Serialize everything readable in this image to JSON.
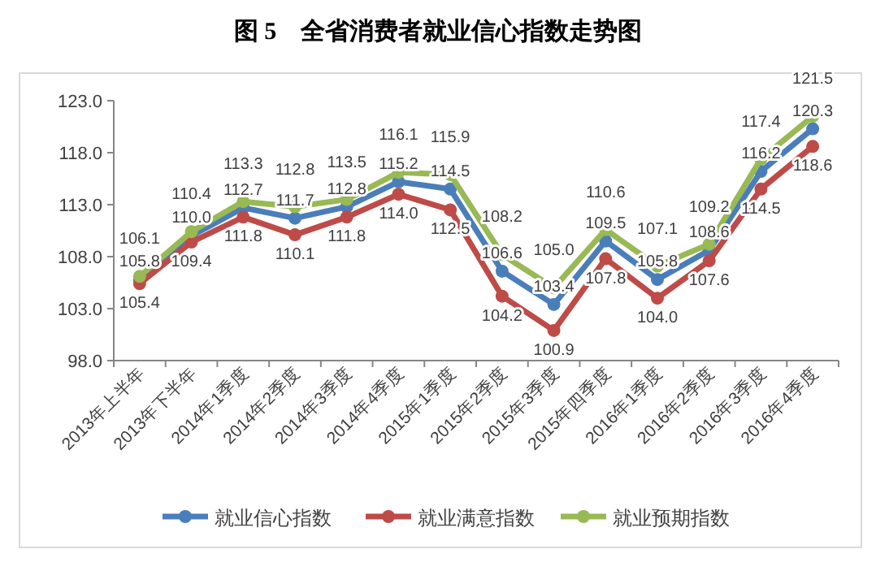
{
  "chart_data": {
    "type": "line",
    "title": "图 5    全省消费者就业信心指数走势图",
    "categories": [
      "2013年上半年",
      "2013年下半年",
      "2014年1季度",
      "2014年2季度",
      "2014年3季度",
      "2014年4季度",
      "2015年1季度",
      "2015年2季度",
      "2015年3季度",
      "2015年四季度",
      "2016年1季度",
      "2016年2季度",
      "2016年3季度",
      "2016年4季度"
    ],
    "series": [
      {
        "name": "就业信心指数",
        "color": "#4a7ebb",
        "values": [
          105.8,
          110.0,
          112.7,
          111.7,
          112.8,
          115.2,
          114.5,
          106.6,
          103.4,
          109.5,
          105.8,
          108.6,
          116.2,
          120.3
        ],
        "value_labels": [
          "105.8",
          "110.0",
          "112.7",
          "111.7",
          "112.8",
          "115.2",
          "114.5",
          "106.6",
          "103.4",
          "109.5",
          "105.8",
          "108.6",
          "116.2",
          "120.3"
        ]
      },
      {
        "name": "就业满意指数",
        "color": "#be4b48",
        "values": [
          105.4,
          109.4,
          111.8,
          110.1,
          111.8,
          114.0,
          112.5,
          104.2,
          100.9,
          107.8,
          104.0,
          107.6,
          114.5,
          118.6
        ],
        "value_labels": [
          "105.4",
          "109.4",
          "111.8",
          "110.1",
          "111.8",
          "114.0",
          "112.5",
          "104.2",
          "100.9",
          "107.8",
          "104.0",
          "107.6",
          "114.5",
          "118.6"
        ]
      },
      {
        "name": "就业预期指数",
        "color": "#98b954",
        "values": [
          106.1,
          110.4,
          113.3,
          112.8,
          113.5,
          116.1,
          115.9,
          108.2,
          105.0,
          110.6,
          107.1,
          109.2,
          117.4,
          121.5
        ],
        "value_labels": [
          "106.1",
          "110.4",
          "113.3",
          "112.8",
          "113.5",
          "116.1",
          "115.9",
          "108.2",
          "105.0",
          "110.6",
          "107.1",
          "109.2",
          "117.4",
          "121.5"
        ]
      }
    ],
    "ylim": [
      98,
      123
    ],
    "yticks": [
      {
        "value": 98,
        "label": "98.0"
      },
      {
        "value": 103,
        "label": "103.0"
      },
      {
        "value": 108,
        "label": "108.0"
      },
      {
        "value": 113,
        "label": "113.0"
      },
      {
        "value": 118,
        "label": "118.0"
      },
      {
        "value": 123,
        "label": "123.0"
      }
    ],
    "marker": "circle",
    "legend": "bottom"
  }
}
